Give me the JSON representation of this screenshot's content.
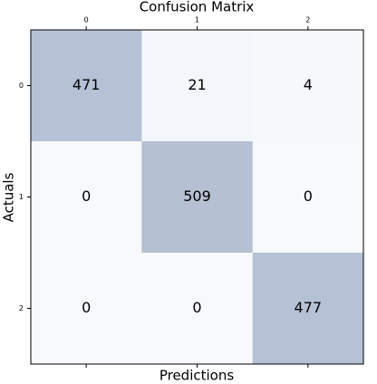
{
  "chart_data": {
    "type": "heatmap",
    "title": "Confusion Matrix",
    "x_label": "Predictions",
    "y_label": "Actuals",
    "x_categories": [
      "0",
      "1",
      "2"
    ],
    "y_categories": [
      "0",
      "1",
      "2"
    ],
    "values": [
      [
        471,
        21,
        4
      ],
      [
        0,
        509,
        0
      ],
      [
        0,
        0,
        477
      ]
    ],
    "colormap": [
      "#f7f9fc",
      "#dfe7f1",
      "#c6d6e8",
      "#b5c6de",
      "#b5c0d2"
    ]
  }
}
